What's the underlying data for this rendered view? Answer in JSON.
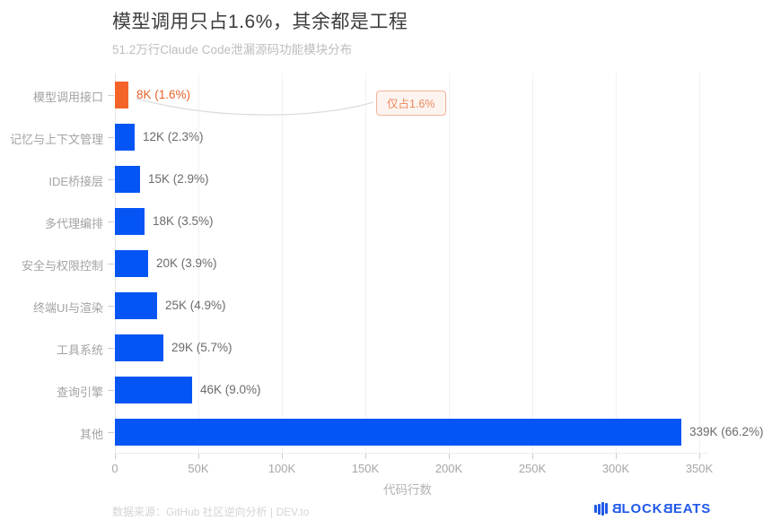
{
  "header": {
    "title": "模型调用只占1.6%，其余都是工程",
    "subtitle": "51.2万行Claude Code泄漏源码功能模块分布"
  },
  "chart_data": {
    "type": "bar",
    "orientation": "horizontal",
    "title": "模型调用只占1.6%，其余都是工程",
    "subtitle": "51.2万行Claude Code泄漏源码功能模块分布",
    "xlabel": "代码行数",
    "ylabel": "",
    "x_axis_unit": "K",
    "x_ticks": [
      "0",
      "50K",
      "100K",
      "150K",
      "200K",
      "250K",
      "300K",
      "350K"
    ],
    "x_tick_values_k": [
      0,
      50,
      100,
      150,
      200,
      250,
      300,
      350
    ],
    "xlim_k": [
      0,
      350
    ],
    "grid": "vertical-light",
    "categories": [
      "模型调用接口",
      "记忆与上下文管理",
      "IDE桥接层",
      "多代理编排",
      "安全与权限控制",
      "终端UI与渲染",
      "工具系统",
      "查询引擎",
      "其他"
    ],
    "values_k": [
      8,
      12,
      15,
      18,
      20,
      25,
      29,
      46,
      339
    ],
    "percents": [
      1.6,
      2.3,
      2.9,
      3.5,
      3.9,
      4.9,
      5.7,
      9.0,
      66.2
    ],
    "value_labels": [
      "8K (1.6%)",
      "12K (2.3%)",
      "15K (2.9%)",
      "18K (3.5%)",
      "20K (3.9%)",
      "25K (4.9%)",
      "29K (5.7%)",
      "46K (9.0%)",
      "339K (66.2%)"
    ],
    "highlight_index": 0,
    "colors": {
      "bar_default": "#0555f4",
      "bar_highlight": "#f4642a",
      "value_label": "#6b6b6b",
      "value_label_highlight": "#e8622c"
    },
    "annotation": {
      "text": "仅占1.6%",
      "target_category": "模型调用接口"
    }
  },
  "footer": {
    "source": "数据来源：GitHub 社区逆向分析 | DEV.to",
    "logo_text": "BLOCKBEATS"
  }
}
